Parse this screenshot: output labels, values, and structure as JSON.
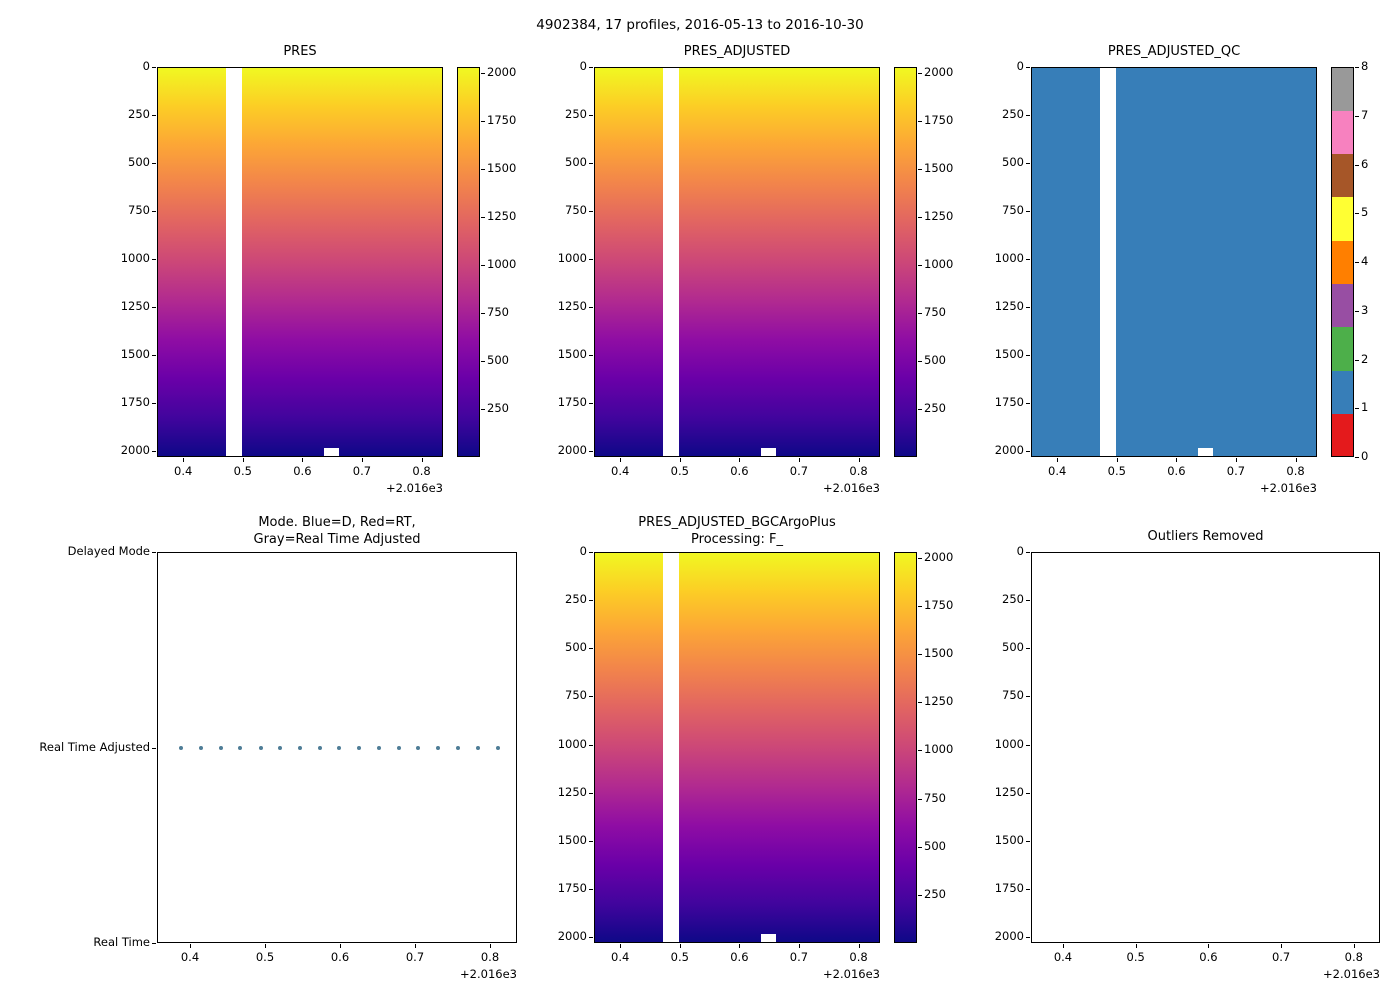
{
  "figure_title": "4902384, 17 profiles, 2016-05-13 to 2016-10-30",
  "colors": {
    "background": "#ffffff",
    "spine": "#000000",
    "plasma_stops_bottom_to_top": [
      "#0d0887",
      "#41049d",
      "#6a00a8",
      "#8f0da4",
      "#b12a90",
      "#cc4778",
      "#e16462",
      "#f2844b",
      "#fca636",
      "#fcce25",
      "#f0f921"
    ],
    "qc_flag_colors_0_to_8": [
      "#e41a1c",
      "#377eb8",
      "#4daf4a",
      "#984ea3",
      "#ff7f00",
      "#ffff33",
      "#a65628",
      "#f781bf",
      "#999999"
    ],
    "qc_field_color": "#377eb8",
    "mode_marker_color": "#4e7d96"
  },
  "chart_data": [
    {
      "id": "pres",
      "type": "heatmap",
      "title": "PRES",
      "xlabel": "",
      "ylabel": "",
      "xlim": [
        0.356,
        0.836
      ],
      "x_offset": "+2.016e3",
      "x_tick_values": [
        0.4,
        0.5,
        0.6,
        0.7,
        0.8
      ],
      "x_tick_labels": [
        "0.4",
        "0.5",
        "0.6",
        "0.7",
        "0.8"
      ],
      "ylim": [
        0,
        2030
      ],
      "y_inverted": true,
      "y_tick_values": [
        0,
        250,
        500,
        750,
        1000,
        1250,
        1500,
        1750,
        2000
      ],
      "y_tick_labels": [
        "0",
        "250",
        "500",
        "750",
        "1000",
        "1250",
        "1500",
        "1750",
        "2000"
      ],
      "value_range": [
        0,
        2030
      ],
      "gap_x": [
        0.472,
        0.499
      ],
      "bottom_notch": {
        "x": [
          0.636,
          0.662
        ],
        "depth": [
          1985,
          2030
        ]
      },
      "colorbar": {
        "type": "gradient",
        "range": [
          0,
          2030
        ],
        "tick_values": [
          250,
          500,
          750,
          1000,
          1250,
          1500,
          1750,
          2000
        ],
        "tick_labels": [
          "250",
          "500",
          "750",
          "1000",
          "1250",
          "1500",
          "1750",
          "2000"
        ]
      }
    },
    {
      "id": "pres_adjusted",
      "type": "heatmap",
      "title": "PRES_ADJUSTED",
      "xlim": [
        0.356,
        0.836
      ],
      "x_offset": "+2.016e3",
      "x_tick_values": [
        0.4,
        0.5,
        0.6,
        0.7,
        0.8
      ],
      "x_tick_labels": [
        "0.4",
        "0.5",
        "0.6",
        "0.7",
        "0.8"
      ],
      "ylim": [
        0,
        2030
      ],
      "y_inverted": true,
      "y_tick_values": [
        0,
        250,
        500,
        750,
        1000,
        1250,
        1500,
        1750,
        2000
      ],
      "y_tick_labels": [
        "0",
        "250",
        "500",
        "750",
        "1000",
        "1250",
        "1500",
        "1750",
        "2000"
      ],
      "gap_x": [
        0.472,
        0.499
      ],
      "bottom_notch": {
        "x": [
          0.636,
          0.662
        ],
        "depth": [
          1985,
          2030
        ]
      },
      "colorbar": {
        "type": "gradient",
        "range": [
          0,
          2030
        ],
        "tick_values": [
          250,
          500,
          750,
          1000,
          1250,
          1500,
          1750,
          2000
        ],
        "tick_labels": [
          "250",
          "500",
          "750",
          "1000",
          "1250",
          "1500",
          "1750",
          "2000"
        ]
      }
    },
    {
      "id": "qc",
      "type": "qc",
      "title": "PRES_ADJUSTED_QC",
      "field_flag_value": 1,
      "xlim": [
        0.356,
        0.836
      ],
      "x_offset": "+2.016e3",
      "x_tick_values": [
        0.4,
        0.5,
        0.6,
        0.7,
        0.8
      ],
      "x_tick_labels": [
        "0.4",
        "0.5",
        "0.6",
        "0.7",
        "0.8"
      ],
      "ylim": [
        0,
        2030
      ],
      "y_inverted": true,
      "y_tick_values": [
        0,
        250,
        500,
        750,
        1000,
        1250,
        1500,
        1750,
        2000
      ],
      "y_tick_labels": [
        "0",
        "250",
        "500",
        "750",
        "1000",
        "1250",
        "1500",
        "1750",
        "2000"
      ],
      "gap_x": [
        0.472,
        0.499
      ],
      "bottom_notch": {
        "x": [
          0.636,
          0.662
        ],
        "depth": [
          1985,
          2030
        ]
      },
      "colorbar": {
        "type": "discrete",
        "range": [
          0,
          8
        ],
        "tick_values": [
          0,
          1,
          2,
          3,
          4,
          5,
          6,
          7,
          8
        ],
        "tick_labels": [
          "0",
          "1",
          "2",
          "3",
          "4",
          "5",
          "6",
          "7",
          "8"
        ]
      }
    },
    {
      "id": "mode",
      "type": "scatter",
      "title_lines": [
        "Mode. Blue=D, Red=RT,",
        "Gray=Real Time Adjusted"
      ],
      "xlim": [
        0.356,
        0.836
      ],
      "x_offset": "+2.016e3",
      "x_tick_values": [
        0.4,
        0.5,
        0.6,
        0.7,
        0.8
      ],
      "x_tick_labels": [
        "0.4",
        "0.5",
        "0.6",
        "0.7",
        "0.8"
      ],
      "y_categories": [
        "Delayed Mode",
        "Real Time Adjusted",
        "Real Time"
      ],
      "points": {
        "y_category": "Real Time Adjusted",
        "x": [
          0.388,
          0.414,
          0.441,
          0.467,
          0.494,
          0.52,
          0.546,
          0.573,
          0.599,
          0.625,
          0.652,
          0.678,
          0.704,
          0.731,
          0.757,
          0.784,
          0.81
        ]
      }
    },
    {
      "id": "bgc",
      "type": "heatmap",
      "title_lines": [
        "PRES_ADJUSTED_BGCArgoPlus",
        "Processing: F_"
      ],
      "xlim": [
        0.356,
        0.836
      ],
      "x_offset": "+2.016e3",
      "x_tick_values": [
        0.4,
        0.5,
        0.6,
        0.7,
        0.8
      ],
      "x_tick_labels": [
        "0.4",
        "0.5",
        "0.6",
        "0.7",
        "0.8"
      ],
      "ylim": [
        0,
        2030
      ],
      "y_inverted": true,
      "y_tick_values": [
        0,
        250,
        500,
        750,
        1000,
        1250,
        1500,
        1750,
        2000
      ],
      "y_tick_labels": [
        "0",
        "250",
        "500",
        "750",
        "1000",
        "1250",
        "1500",
        "1750",
        "2000"
      ],
      "gap_x": [
        0.472,
        0.499
      ],
      "bottom_notch": {
        "x": [
          0.636,
          0.662
        ],
        "depth": [
          1985,
          2030
        ]
      },
      "colorbar": {
        "type": "gradient",
        "range": [
          0,
          2030
        ],
        "tick_values": [
          250,
          500,
          750,
          1000,
          1250,
          1500,
          1750,
          2000
        ],
        "tick_labels": [
          "250",
          "500",
          "750",
          "1000",
          "1250",
          "1500",
          "1750",
          "2000"
        ]
      }
    },
    {
      "id": "outliers",
      "type": "empty",
      "title": "Outliers Removed",
      "xlim": [
        0.356,
        0.836
      ],
      "x_offset": "+2.016e3",
      "x_tick_values": [
        0.4,
        0.5,
        0.6,
        0.7,
        0.8
      ],
      "x_tick_labels": [
        "0.4",
        "0.5",
        "0.6",
        "0.7",
        "0.8"
      ],
      "ylim": [
        0,
        2030
      ],
      "y_inverted": true,
      "y_tick_values": [
        0,
        250,
        500,
        750,
        1000,
        1250,
        1500,
        1750,
        2000
      ],
      "y_tick_labels": [
        "0",
        "250",
        "500",
        "750",
        "1000",
        "1250",
        "1500",
        "1750",
        "2000"
      ]
    }
  ]
}
